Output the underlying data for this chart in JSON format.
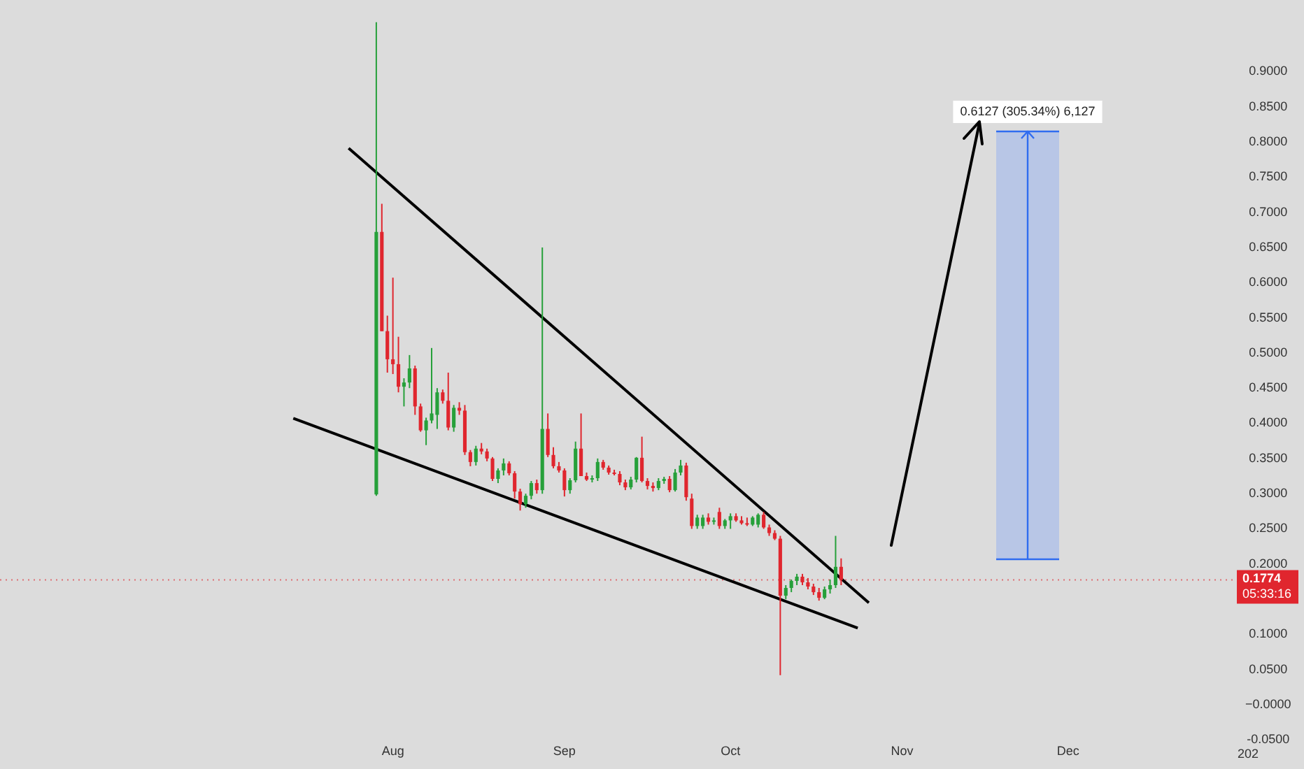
{
  "chart_data": {
    "type": "candlestick",
    "x": [
      "--07-29",
      "--07-30",
      "--07-31",
      "--08-01",
      "--08-02",
      "--08-03",
      "--08-04",
      "--08-05",
      "--08-06",
      "--08-07",
      "--08-08",
      "--08-09",
      "--08-10",
      "--08-11",
      "--08-12",
      "--08-13",
      "--08-14",
      "--08-15",
      "--08-16",
      "--08-17",
      "--08-18",
      "--08-19",
      "--08-20",
      "--08-21",
      "--08-22",
      "--08-23",
      "--08-24",
      "--08-25",
      "--08-26",
      "--08-27",
      "--08-28",
      "--08-29",
      "--08-30",
      "--08-31",
      "--09-01",
      "--09-02",
      "--09-03",
      "--09-04",
      "--09-05",
      "--09-06",
      "--09-07",
      "--09-08",
      "--09-09",
      "--09-10",
      "--09-11",
      "--09-12",
      "--09-13",
      "--09-14",
      "--09-15",
      "--09-16",
      "--09-17",
      "--09-18",
      "--09-19",
      "--09-20",
      "--09-21",
      "--09-22",
      "--09-23",
      "--09-24",
      "--09-25",
      "--09-26",
      "--09-27",
      "--09-28",
      "--09-29",
      "--09-30",
      "--10-01",
      "--10-02",
      "--10-03",
      "--10-04",
      "--10-05",
      "--10-06",
      "--10-07",
      "--10-08",
      "--10-09",
      "--10-10",
      "--10-11",
      "--10-12",
      "--10-13",
      "--10-14",
      "--10-15",
      "--10-16",
      "--10-17",
      "--10-18",
      "--10-19",
      "--10-20",
      "--10-21"
    ],
    "ohlc": [
      [
        0.299,
        0.97,
        0.297,
        0.672
      ],
      [
        0.672,
        0.712,
        0.531,
        0.531
      ],
      [
        0.531,
        0.553,
        0.472,
        0.491
      ],
      [
        0.491,
        0.607,
        0.47,
        0.484
      ],
      [
        0.484,
        0.523,
        0.444,
        0.452
      ],
      [
        0.452,
        0.464,
        0.424,
        0.458
      ],
      [
        0.458,
        0.497,
        0.45,
        0.478
      ],
      [
        0.478,
        0.482,
        0.412,
        0.424
      ],
      [
        0.424,
        0.428,
        0.388,
        0.39
      ],
      [
        0.39,
        0.408,
        0.369,
        0.404
      ],
      [
        0.404,
        0.507,
        0.4,
        0.414
      ],
      [
        0.412,
        0.45,
        0.392,
        0.444
      ],
      [
        0.444,
        0.448,
        0.428,
        0.432
      ],
      [
        0.432,
        0.472,
        0.39,
        0.394
      ],
      [
        0.394,
        0.426,
        0.388,
        0.422
      ],
      [
        0.422,
        0.43,
        0.412,
        0.418
      ],
      [
        0.418,
        0.426,
        0.355,
        0.359
      ],
      [
        0.359,
        0.362,
        0.339,
        0.345
      ],
      [
        0.345,
        0.368,
        0.34,
        0.364
      ],
      [
        0.364,
        0.372,
        0.356,
        0.36
      ],
      [
        0.36,
        0.364,
        0.346,
        0.35
      ],
      [
        0.35,
        0.352,
        0.318,
        0.321
      ],
      [
        0.321,
        0.336,
        0.315,
        0.333
      ],
      [
        0.333,
        0.35,
        0.326,
        0.343
      ],
      [
        0.343,
        0.346,
        0.326,
        0.329
      ],
      [
        0.329,
        0.332,
        0.293,
        0.303
      ],
      [
        0.303,
        0.307,
        0.276,
        0.285
      ],
      [
        0.285,
        0.3,
        0.28,
        0.297
      ],
      [
        0.297,
        0.318,
        0.292,
        0.315
      ],
      [
        0.315,
        0.32,
        0.3,
        0.305
      ],
      [
        0.305,
        0.65,
        0.3,
        0.392
      ],
      [
        0.392,
        0.414,
        0.352,
        0.355
      ],
      [
        0.355,
        0.366,
        0.336,
        0.339
      ],
      [
        0.339,
        0.345,
        0.33,
        0.333
      ],
      [
        0.333,
        0.336,
        0.296,
        0.305
      ],
      [
        0.305,
        0.322,
        0.3,
        0.319
      ],
      [
        0.319,
        0.374,
        0.316,
        0.364
      ],
      [
        0.364,
        0.414,
        0.325,
        0.325
      ],
      [
        0.325,
        0.33,
        0.318,
        0.32
      ],
      [
        0.32,
        0.326,
        0.316,
        0.322
      ],
      [
        0.322,
        0.35,
        0.318,
        0.345
      ],
      [
        0.345,
        0.348,
        0.334,
        0.337
      ],
      [
        0.337,
        0.34,
        0.327,
        0.33
      ],
      [
        0.33,
        0.334,
        0.326,
        0.328
      ],
      [
        0.328,
        0.332,
        0.312,
        0.316
      ],
      [
        0.316,
        0.32,
        0.305,
        0.309
      ],
      [
        0.309,
        0.324,
        0.306,
        0.32
      ],
      [
        0.32,
        0.352,
        0.316,
        0.351
      ],
      [
        0.351,
        0.381,
        0.316,
        0.318
      ],
      [
        0.318,
        0.322,
        0.306,
        0.311
      ],
      [
        0.311,
        0.316,
        0.303,
        0.308
      ],
      [
        0.308,
        0.322,
        0.305,
        0.318
      ],
      [
        0.318,
        0.324,
        0.314,
        0.321
      ],
      [
        0.321,
        0.325,
        0.302,
        0.305
      ],
      [
        0.305,
        0.335,
        0.303,
        0.33
      ],
      [
        0.33,
        0.348,
        0.326,
        0.34
      ],
      [
        0.34,
        0.344,
        0.29,
        0.295
      ],
      [
        0.293,
        0.3,
        0.25,
        0.254
      ],
      [
        0.254,
        0.27,
        0.25,
        0.266
      ],
      [
        0.254,
        0.27,
        0.25,
        0.266
      ],
      [
        0.266,
        0.272,
        0.256,
        0.26
      ],
      [
        0.26,
        0.266,
        0.256,
        0.262
      ],
      [
        0.274,
        0.28,
        0.25,
        0.254
      ],
      [
        0.254,
        0.264,
        0.25,
        0.262
      ],
      [
        0.262,
        0.272,
        0.25,
        0.268
      ],
      [
        0.268,
        0.272,
        0.26,
        0.262
      ],
      [
        0.262,
        0.268,
        0.256,
        0.258
      ],
      [
        0.258,
        0.266,
        0.254,
        0.256
      ],
      [
        0.256,
        0.268,
        0.254,
        0.266
      ],
      [
        0.256,
        0.272,
        0.252,
        0.27
      ],
      [
        0.27,
        0.274,
        0.25,
        0.252
      ],
      [
        0.252,
        0.256,
        0.24,
        0.244
      ],
      [
        0.244,
        0.248,
        0.234,
        0.236
      ],
      [
        0.236,
        0.24,
        0.042,
        0.155
      ],
      [
        0.155,
        0.17,
        0.15,
        0.166
      ],
      [
        0.166,
        0.178,
        0.16,
        0.176
      ],
      [
        0.176,
        0.186,
        0.17,
        0.182
      ],
      [
        0.182,
        0.186,
        0.17,
        0.174
      ],
      [
        0.174,
        0.18,
        0.164,
        0.168
      ],
      [
        0.168,
        0.172,
        0.156,
        0.16
      ],
      [
        0.16,
        0.166,
        0.148,
        0.152
      ],
      [
        0.152,
        0.168,
        0.15,
        0.164
      ],
      [
        0.164,
        0.178,
        0.158,
        0.17
      ],
      [
        0.17,
        0.24,
        0.166,
        0.196
      ],
      [
        0.196,
        0.208,
        0.17,
        0.1774
      ]
    ],
    "series": [
      {
        "type": "line",
        "color": "#000000",
        "x": [
          "--07-24",
          "--10-26"
        ],
        "values": [
          0.791,
          0.145
        ]
      },
      {
        "type": "line",
        "color": "#000000",
        "x": [
          "--07-14",
          "--10-24"
        ],
        "values": [
          0.407,
          0.109
        ]
      }
    ],
    "xlim": [
      "--05-22",
      "--12-31"
    ],
    "xticks": [
      {
        "value": "--08-01",
        "label": "Aug"
      },
      {
        "value": "--09-01",
        "label": "Sep"
      },
      {
        "value": "--10-01",
        "label": "Oct"
      },
      {
        "value": "--11-01",
        "label": "Nov"
      },
      {
        "value": "--12-01",
        "label": "Dec"
      }
    ],
    "ylim": [
      -0.05,
      0.975
    ],
    "yticks": [
      {
        "value": -0.05,
        "label": "-0.0500"
      },
      {
        "value": 0,
        "label": "−0.0000"
      },
      {
        "value": 0.05,
        "label": "0.0500"
      },
      {
        "value": 0.1,
        "label": "0.1000"
      },
      {
        "value": 0.2,
        "label": "0.2000"
      },
      {
        "value": 0.25,
        "label": "0.2500"
      },
      {
        "value": 0.3,
        "label": "0.3000"
      },
      {
        "value": 0.35,
        "label": "0.3500"
      },
      {
        "value": 0.4,
        "label": "0.4000"
      },
      {
        "value": 0.45,
        "label": "0.4500"
      },
      {
        "value": 0.5,
        "label": "0.5000"
      },
      {
        "value": 0.55,
        "label": "0.5500"
      },
      {
        "value": 0.6,
        "label": "0.6000"
      },
      {
        "value": 0.65,
        "label": "0.6500"
      },
      {
        "value": 0.7,
        "label": "0.7000"
      },
      {
        "value": 0.75,
        "label": "0.7500"
      },
      {
        "value": 0.8,
        "label": "0.8000"
      },
      {
        "value": 0.85,
        "label": "0.8500"
      },
      {
        "value": 0.9,
        "label": "0.9000"
      }
    ],
    "ref_lines": [
      {
        "axis": "y",
        "value": 0.1774,
        "label": "0.1774",
        "color": "#e0262e",
        "line_style": "dotted"
      }
    ],
    "annotations": [
      "0.6127 (305.34%) 6,127",
      "05:33:16",
      "202"
    ]
  }
}
